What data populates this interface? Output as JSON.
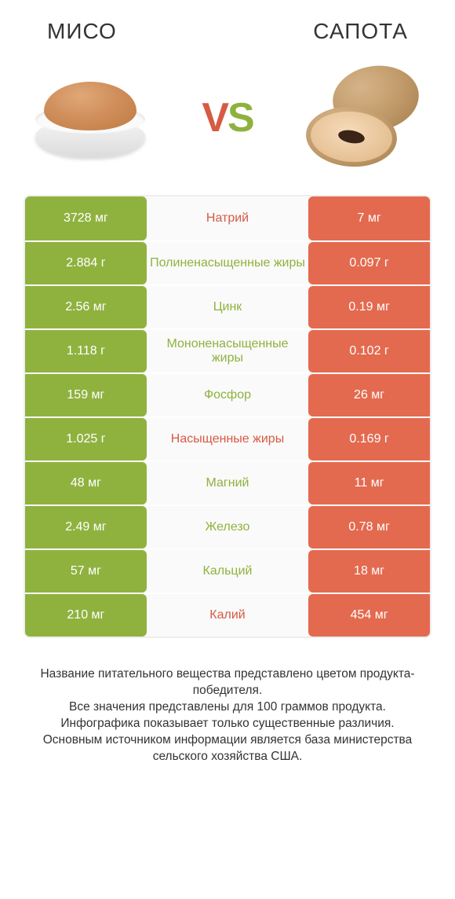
{
  "colors": {
    "left_cell": "#8fb23f",
    "right_cell": "#e36a4f",
    "green_text": "#8fb23f",
    "red_text": "#d75a43",
    "row_bg": "#fafafa"
  },
  "header": {
    "left_title": "МИСО",
    "right_title": "САПОТА"
  },
  "vs": {
    "v": "V",
    "s": "S"
  },
  "rows": [
    {
      "left": "3728 мг",
      "label": "Натрий",
      "right": "7 мг",
      "label_color": "red"
    },
    {
      "left": "2.884 г",
      "label": "Полиненасыщенные жиры",
      "right": "0.097 г",
      "label_color": "green"
    },
    {
      "left": "2.56 мг",
      "label": "Цинк",
      "right": "0.19 мг",
      "label_color": "green"
    },
    {
      "left": "1.118 г",
      "label": "Мононенасыщенные жиры",
      "right": "0.102 г",
      "label_color": "green"
    },
    {
      "left": "159 мг",
      "label": "Фосфор",
      "right": "26 мг",
      "label_color": "green"
    },
    {
      "left": "1.025 г",
      "label": "Насыщенные жиры",
      "right": "0.169 г",
      "label_color": "red"
    },
    {
      "left": "48 мг",
      "label": "Магний",
      "right": "11 мг",
      "label_color": "green"
    },
    {
      "left": "2.49 мг",
      "label": "Железо",
      "right": "0.78 мг",
      "label_color": "green"
    },
    {
      "left": "57 мг",
      "label": "Кальций",
      "right": "18 мг",
      "label_color": "green"
    },
    {
      "left": "210 мг",
      "label": "Калий",
      "right": "454 мг",
      "label_color": "red"
    }
  ],
  "footer": {
    "line1": "Название питательного вещества представлено цветом продукта-победителя.",
    "line2": "Все значения представлены для 100 граммов продукта.",
    "line3": "Инфографика показывает только существенные различия.",
    "line4": "Основным источником информации является база министерства сельского хозяйства США."
  }
}
